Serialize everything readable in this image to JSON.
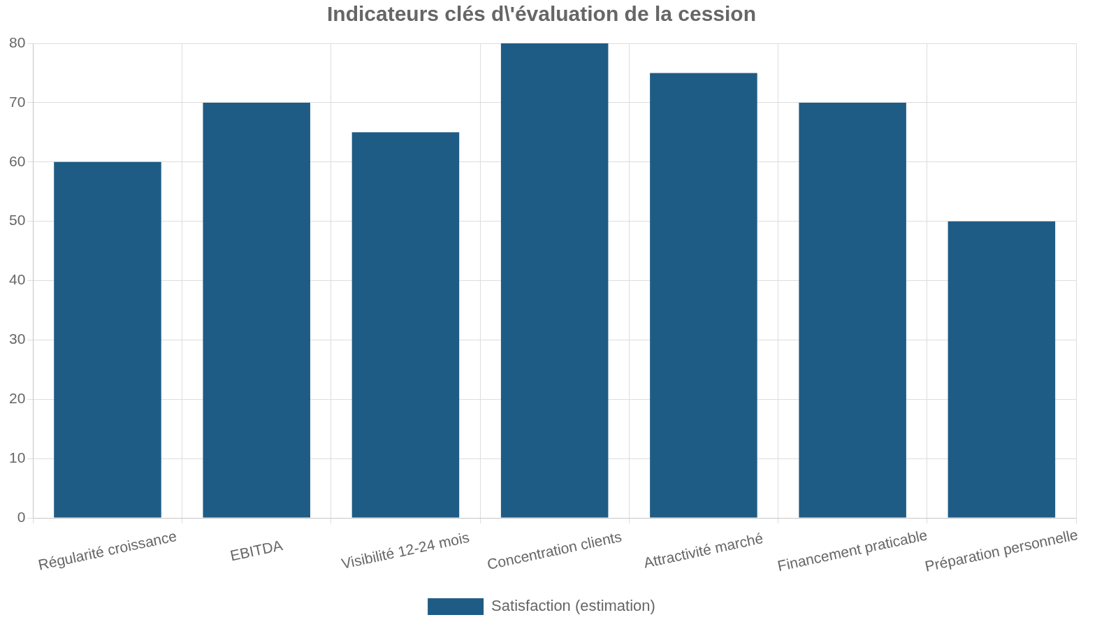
{
  "chart_data": {
    "type": "bar",
    "title": "Indicateurs clés d\\'évaluation de la cession",
    "categories": [
      "Régularité croissance",
      "EBITDA",
      "Visibilité 12-24 mois",
      "Concentration clients",
      "Attractivité marché",
      "Financement praticable",
      "Préparation personnelle"
    ],
    "series": [
      {
        "name": "Satisfaction (estimation)",
        "color": "#1f5c85",
        "values": [
          60,
          70,
          65,
          80,
          75,
          70,
          50
        ]
      }
    ],
    "ylim": [
      0,
      80
    ],
    "yticks": [
      0,
      10,
      20,
      30,
      40,
      50,
      60,
      70,
      80
    ],
    "grid": true,
    "legend": "bottom"
  }
}
